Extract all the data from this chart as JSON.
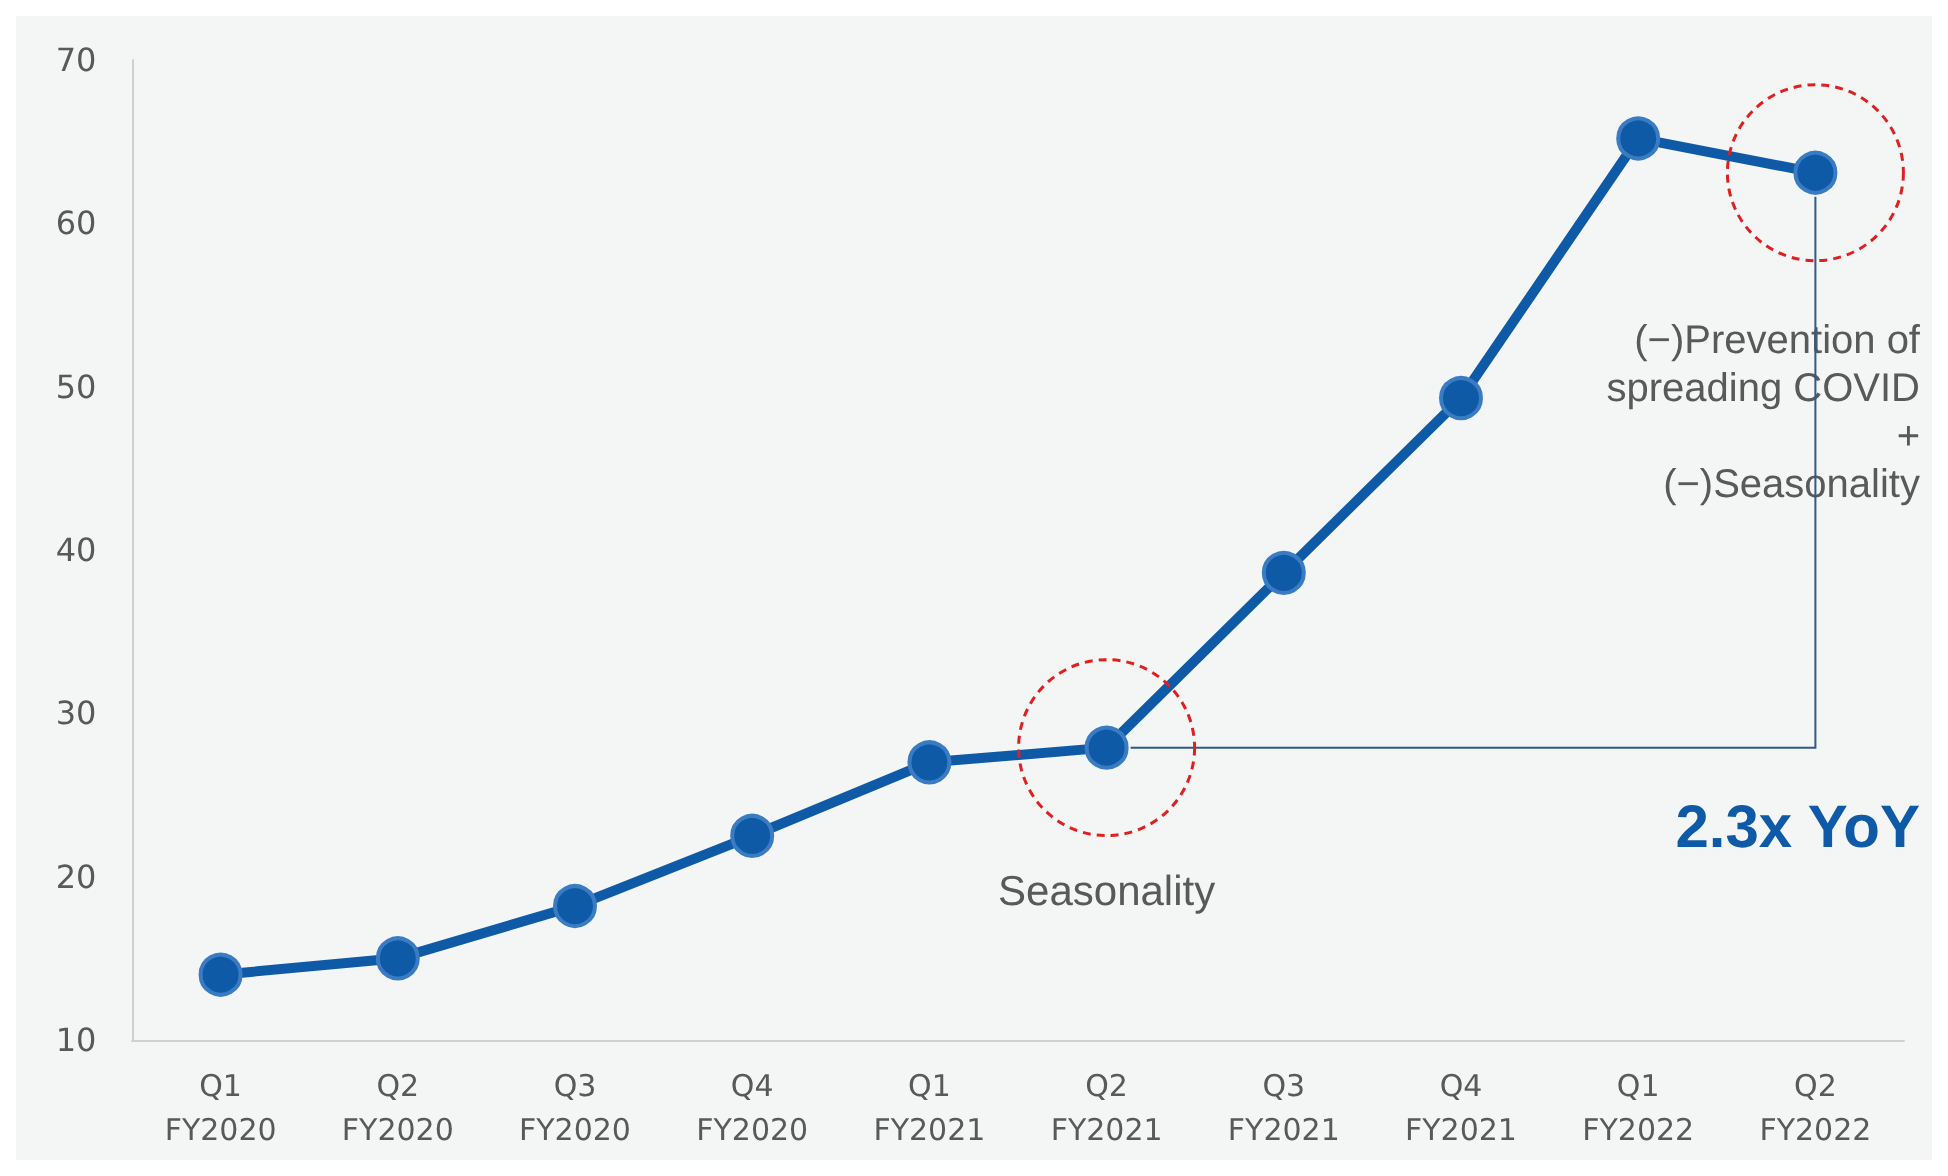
{
  "chart_data": {
    "type": "line",
    "categories": [
      "Q1\nFY2020",
      "Q2\nFY2020",
      "Q3\nFY2020",
      "Q4\nFY2020",
      "Q1\nFY2021",
      "Q2\nFY2021",
      "Q3\nFY2021",
      "Q4\nFY2021",
      "Q1\nFY2022",
      "Q2\nFY2022"
    ],
    "series": [
      {
        "color": "#0e5aa7",
        "values": [
          14.0,
          15.0,
          18.2,
          22.5,
          27.0,
          27.9,
          38.6,
          49.3,
          65.2,
          63.1
        ]
      }
    ],
    "ylim": [
      10,
      70
    ],
    "yticks": [
      10,
      20,
      30,
      40,
      50,
      60,
      70
    ],
    "grid": false,
    "marker": "circle",
    "line_style": "solid",
    "annotations": [
      "Seasonality",
      "(−)Prevention of\nspreading COVID\n+\n(−)Seasonality",
      "2.3x YoY"
    ]
  }
}
